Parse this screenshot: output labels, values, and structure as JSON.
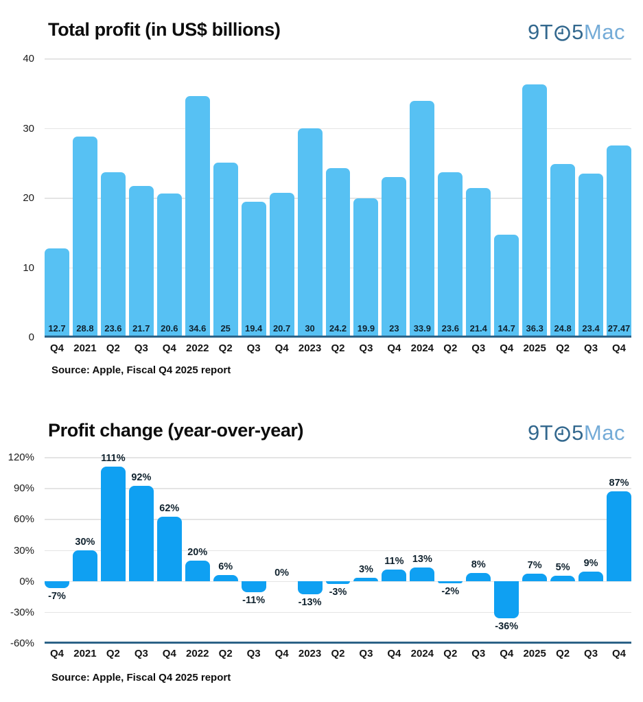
{
  "logo": {
    "part1": "9T",
    "part2": "5",
    "part3": "Mac",
    "dark_color": "#33688E",
    "light_color": "#74ABD7",
    "clock_icon": "clock"
  },
  "colors": {
    "chart1_bar": "#57C1F3",
    "chart2_bar": "#0FA0F2",
    "axis_line": "#2C6287",
    "gridline": "#E4E4E4",
    "bar_label_text": "#10222E"
  },
  "chart_data": [
    {
      "type": "bar",
      "title": "Total profit (in US$ billions)",
      "source": "Source: Apple, Fiscal Q4 2025 report",
      "categories": [
        "Q4",
        "2021",
        "Q2",
        "Q3",
        "Q4",
        "2022",
        "Q2",
        "Q3",
        "Q4",
        "2023",
        "Q2",
        "Q3",
        "Q4",
        "2024",
        "Q2",
        "Q3",
        "Q4",
        "2025",
        "Q2",
        "Q3",
        "Q4"
      ],
      "values": [
        12.7,
        28.8,
        23.6,
        21.7,
        20.6,
        34.6,
        25,
        19.4,
        20.7,
        30,
        24.2,
        19.9,
        23,
        33.9,
        23.6,
        21.4,
        14.7,
        36.3,
        24.8,
        23.4,
        27.47
      ],
      "bar_labels": [
        "12.7",
        "28.8",
        "23.6",
        "21.7",
        "20.6",
        "34.6",
        "25",
        "19.4",
        "20.7",
        "30",
        "24.2",
        "19.9",
        "23",
        "33.9",
        "23.6",
        "21.4",
        "14.7",
        "36.3",
        "24.8",
        "23.4",
        "27.47"
      ],
      "yticks": [
        40,
        30,
        20,
        10,
        0
      ],
      "ytick_labels": [
        "40",
        "30",
        "20",
        "10",
        "0"
      ],
      "ylim": [
        0,
        40
      ],
      "bar_color": "#57C1F3",
      "label_position": "inside-bottom",
      "grid": true,
      "legend": null,
      "xlabel": "",
      "ylabel": ""
    },
    {
      "type": "bar",
      "title": "Profit change (year-over-year)",
      "source": "Source: Apple, Fiscal Q4 2025 report",
      "categories": [
        "Q4",
        "2021",
        "Q2",
        "Q3",
        "Q4",
        "2022",
        "Q2",
        "Q3",
        "Q4",
        "2023",
        "Q2",
        "Q3",
        "Q4",
        "2024",
        "Q2",
        "Q3",
        "Q4",
        "2025",
        "Q2",
        "Q3",
        "Q4"
      ],
      "values": [
        -7,
        30,
        111,
        92,
        62,
        20,
        6,
        -11,
        0,
        -13,
        -3,
        3,
        11,
        13,
        -2,
        8,
        -36,
        7,
        5,
        9,
        87
      ],
      "bar_labels": [
        "-7%",
        "30%",
        "111%",
        "92%",
        "62%",
        "20%",
        "6%",
        "-11%",
        "0%",
        "-13%",
        "-3%",
        "3%",
        "11%",
        "13%",
        "-2%",
        "8%",
        "-36%",
        "7%",
        "5%",
        "9%",
        "87%"
      ],
      "yticks": [
        120,
        90,
        60,
        30,
        0,
        -30,
        -60
      ],
      "ytick_labels": [
        "120%",
        "90%",
        "60%",
        "30%",
        "0%",
        "-30%",
        "-60%"
      ],
      "ylim": [
        -60,
        120
      ],
      "bar_color": "#0FA0F2",
      "label_position": "outside-end",
      "grid": true,
      "legend": null,
      "xlabel": "",
      "ylabel": ""
    }
  ]
}
